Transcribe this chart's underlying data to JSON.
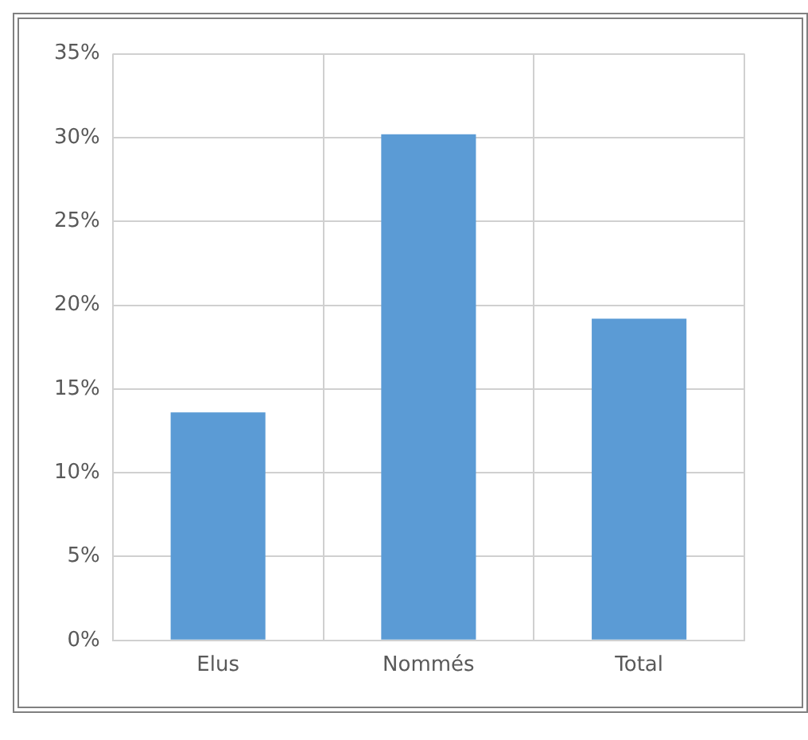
{
  "chart_data": {
    "type": "bar",
    "categories": [
      "Elus",
      "Nommés",
      "Total"
    ],
    "values": [
      13.6,
      30.2,
      19.2
    ],
    "color": "#5b9bd5",
    "ylim": [
      0,
      35
    ],
    "yticks": [
      {
        "value": 0,
        "label": "0%"
      },
      {
        "value": 5,
        "label": "5%"
      },
      {
        "value": 10,
        "label": "10%"
      },
      {
        "value": 15,
        "label": "15%"
      },
      {
        "value": 20,
        "label": "20%"
      },
      {
        "value": 25,
        "label": "25%"
      },
      {
        "value": 30,
        "label": "30%"
      },
      {
        "value": 35,
        "label": "35%"
      }
    ],
    "grid": true,
    "legend": false
  }
}
